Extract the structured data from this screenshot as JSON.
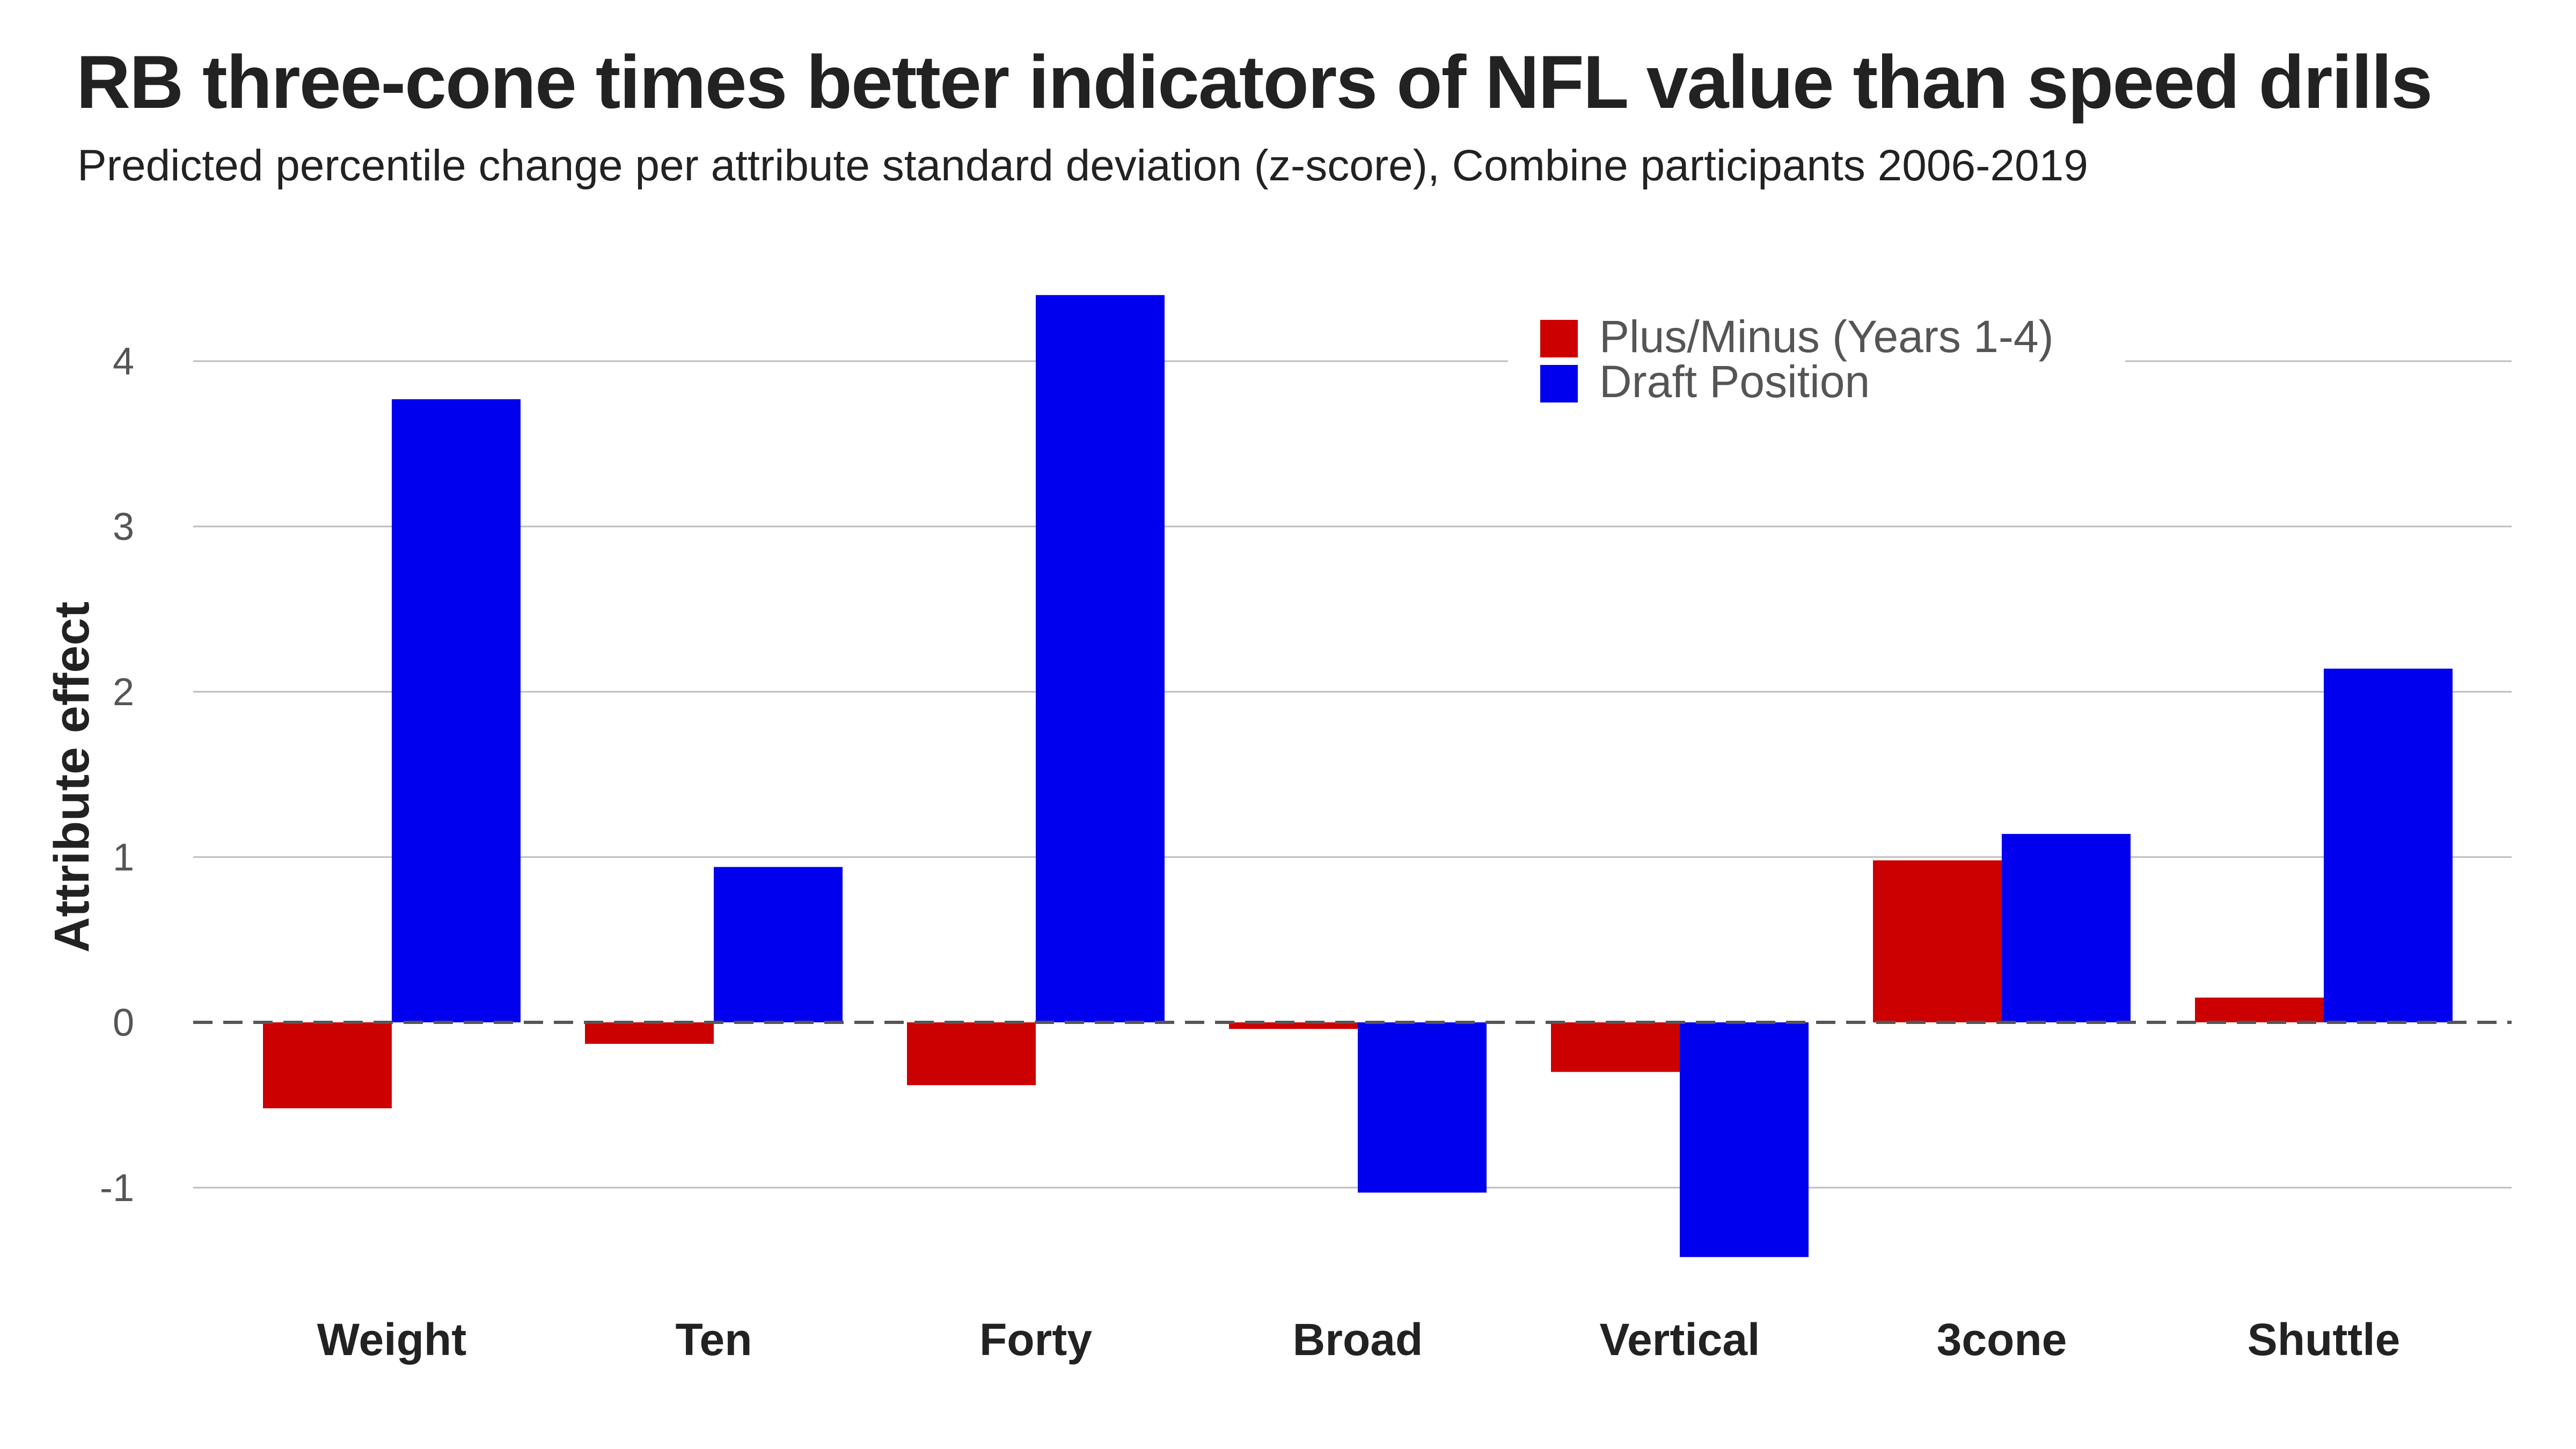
{
  "title": "RB three-cone times better indicators of NFL value than speed drills",
  "subtitle": "Predicted percentile change per attribute standard deviation (z-score), Combine participants 2006-2019",
  "chart_data": {
    "type": "bar",
    "categories": [
      "Weight",
      "Ten",
      "Forty",
      "Broad",
      "Vertical",
      "3cone",
      "Shuttle"
    ],
    "series": [
      {
        "name": "Plus/Minus (Years 1-4)",
        "color": "#cc0000",
        "values": [
          -0.52,
          -0.13,
          -0.38,
          -0.04,
          -0.3,
          0.98,
          0.15
        ]
      },
      {
        "name": "Draft Position",
        "color": "#0000ee",
        "values": [
          3.77,
          0.94,
          4.4,
          -1.03,
          -1.42,
          1.14,
          2.14
        ]
      }
    ],
    "ylabel": "Attribute effect",
    "xlabel": "",
    "ylim": [
      -1.6,
      4.6
    ],
    "yticks": [
      -1,
      0,
      1,
      2,
      3,
      4
    ],
    "grid": true,
    "zero_line": "dashed",
    "legend_position": "top-center"
  }
}
